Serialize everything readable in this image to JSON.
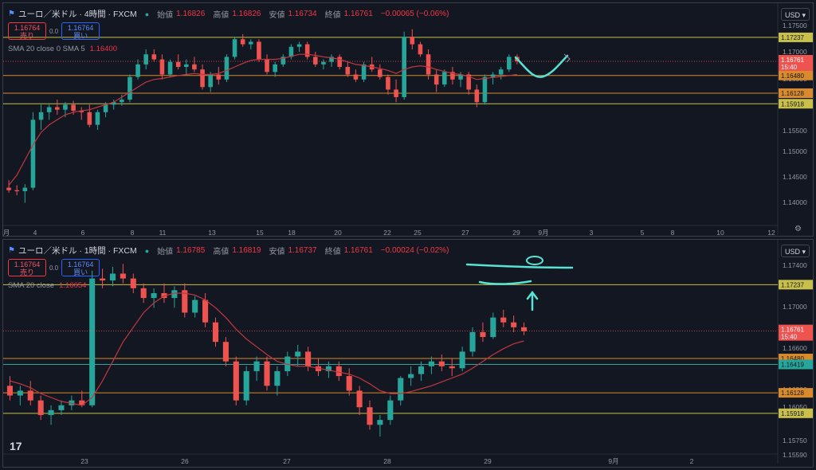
{
  "panels": [
    {
      "symbol": "ユーロ／米ドル · 4時間 · FXCM",
      "ohlc": [
        {
          "k": "始値",
          "v": "1.16826"
        },
        {
          "k": "高値",
          "v": "1.16826"
        },
        {
          "k": "安値",
          "v": "1.16734"
        },
        {
          "k": "終値",
          "v": "1.16761"
        },
        {
          "k": "",
          "v": "−0.00065 (−0.06%)"
        }
      ],
      "sell_price": "1.16764",
      "sell_label": "売り",
      "buy_price": "1.16764",
      "buy_label": "買い",
      "spread": "0.0",
      "sma_label": "SMA 20 close 0 SMA 5",
      "sma_value": "1.16400",
      "currency": "USD"
    },
    {
      "symbol": "ユーロ／米ドル · 1時間 · FXCM",
      "ohlc": [
        {
          "k": "始値",
          "v": "1.16785"
        },
        {
          "k": "高値",
          "v": "1.16819"
        },
        {
          "k": "安値",
          "v": "1.16737"
        },
        {
          "k": "終値",
          "v": "1.16761"
        },
        {
          "k": "",
          "v": "−0.00024 (−0.02%)"
        }
      ],
      "sell_price": "1.16764",
      "sell_label": "売り",
      "buy_price": "1.16764",
      "buy_label": "買い",
      "spread": "0.0",
      "sma_label": "SMA 20 close",
      "sma_value": "1.16654",
      "currency": "USD"
    }
  ],
  "chart_data": [
    {
      "type": "candlestick",
      "title": "ユーロ／米ドル · 4時間 · FXCM",
      "ylim": [
        1.135,
        1.176
      ],
      "y_ticks": [
        "1.17500",
        "1.17000",
        "1.16500",
        "1.16000",
        "1.15500",
        "1.15000",
        "1.14500",
        "1.14000"
      ],
      "x_ticks": [
        "月",
        "4",
        "6",
        "8",
        "11",
        "13",
        "15",
        "18",
        "20",
        "22",
        "25",
        "27",
        "29",
        "9月",
        "3",
        "5",
        "8",
        "10",
        "12"
      ],
      "horizontal_lines": [
        {
          "value": 1.17237,
          "label": "1.17237",
          "color": "#c8c04a"
        },
        {
          "value": 1.1648,
          "label": "1.16480",
          "color": "#d98a2a"
        },
        {
          "value": 1.16128,
          "label": "1.16128",
          "color": "#d98a2a"
        },
        {
          "value": 1.15918,
          "label": "1.15918",
          "color": "#c8c04a"
        }
      ],
      "last_price": {
        "value": "1.16761",
        "countdown": "15:40"
      },
      "sma_price_tag": "1.16480",
      "candles": [
        [
          1.1425,
          1.144,
          1.1415,
          1.142
        ],
        [
          1.142,
          1.143,
          1.141,
          1.1418
        ],
        [
          1.1418,
          1.1432,
          1.1395,
          1.1425
        ],
        [
          1.1425,
          1.1575,
          1.142,
          1.156
        ],
        [
          1.156,
          1.159,
          1.154,
          1.1575
        ],
        [
          1.1575,
          1.159,
          1.156,
          1.1585
        ],
        [
          1.1585,
          1.16,
          1.157,
          1.158
        ],
        [
          1.158,
          1.1595,
          1.1565,
          1.159
        ],
        [
          1.159,
          1.1598,
          1.157,
          1.1578
        ],
        [
          1.1578,
          1.1585,
          1.156,
          1.1575
        ],
        [
          1.1575,
          1.159,
          1.1545,
          1.155
        ],
        [
          1.155,
          1.158,
          1.154,
          1.1575
        ],
        [
          1.1575,
          1.1595,
          1.1565,
          1.159
        ],
        [
          1.159,
          1.16,
          1.158,
          1.1595
        ],
        [
          1.1595,
          1.161,
          1.1588,
          1.16
        ],
        [
          1.16,
          1.165,
          1.1595,
          1.1645
        ],
        [
          1.1645,
          1.168,
          1.164,
          1.167
        ],
        [
          1.167,
          1.17,
          1.166,
          1.169
        ],
        [
          1.169,
          1.17,
          1.1675,
          1.168
        ],
        [
          1.168,
          1.169,
          1.164,
          1.165
        ],
        [
          1.165,
          1.168,
          1.1645,
          1.1675
        ],
        [
          1.1675,
          1.169,
          1.166,
          1.1665
        ],
        [
          1.1665,
          1.168,
          1.165,
          1.167
        ],
        [
          1.167,
          1.1685,
          1.1655,
          1.166
        ],
        [
          1.166,
          1.167,
          1.162,
          1.1625
        ],
        [
          1.1625,
          1.1655,
          1.1615,
          1.165
        ],
        [
          1.165,
          1.1665,
          1.163,
          1.164
        ],
        [
          1.164,
          1.169,
          1.1635,
          1.1685
        ],
        [
          1.1685,
          1.1725,
          1.168,
          1.172
        ],
        [
          1.172,
          1.173,
          1.1705,
          1.171
        ],
        [
          1.171,
          1.172,
          1.17,
          1.1715
        ],
        [
          1.1715,
          1.172,
          1.1675,
          1.168
        ],
        [
          1.168,
          1.169,
          1.165,
          1.1655
        ],
        [
          1.1655,
          1.1675,
          1.1645,
          1.167
        ],
        [
          1.167,
          1.169,
          1.1665,
          1.1685
        ],
        [
          1.1685,
          1.171,
          1.168,
          1.1705
        ],
        [
          1.1705,
          1.1715,
          1.1695,
          1.171
        ],
        [
          1.171,
          1.1715,
          1.168,
          1.1685
        ],
        [
          1.1685,
          1.1695,
          1.1665,
          1.167
        ],
        [
          1.167,
          1.168,
          1.166,
          1.1675
        ],
        [
          1.1675,
          1.169,
          1.1665,
          1.1685
        ],
        [
          1.1685,
          1.169,
          1.166,
          1.1665
        ],
        [
          1.1665,
          1.1675,
          1.1645,
          1.165
        ],
        [
          1.165,
          1.166,
          1.1635,
          1.164
        ],
        [
          1.164,
          1.1675,
          1.1635,
          1.167
        ],
        [
          1.167,
          1.1685,
          1.1655,
          1.166
        ],
        [
          1.166,
          1.167,
          1.164,
          1.1645
        ],
        [
          1.1645,
          1.165,
          1.161,
          1.162
        ],
        [
          1.162,
          1.164,
          1.1595,
          1.1605
        ],
        [
          1.1605,
          1.1735,
          1.16,
          1.1725
        ],
        [
          1.1725,
          1.174,
          1.17,
          1.171
        ],
        [
          1.171,
          1.1715,
          1.1685,
          1.169
        ],
        [
          1.169,
          1.17,
          1.164,
          1.165
        ],
        [
          1.165,
          1.166,
          1.1615,
          1.163
        ],
        [
          1.163,
          1.166,
          1.1625,
          1.1655
        ],
        [
          1.1655,
          1.1665,
          1.163,
          1.164
        ],
        [
          1.164,
          1.1655,
          1.1625,
          1.165
        ],
        [
          1.165,
          1.1655,
          1.161,
          1.162
        ],
        [
          1.162,
          1.163,
          1.1585,
          1.1595
        ],
        [
          1.1595,
          1.165,
          1.159,
          1.1645
        ],
        [
          1.1645,
          1.1655,
          1.163,
          1.165
        ],
        [
          1.165,
          1.1665,
          1.164,
          1.166
        ],
        [
          1.166,
          1.169,
          1.1655,
          1.1685
        ],
        [
          1.1685,
          1.169,
          1.167,
          1.1676
        ]
      ],
      "sma": [
        1.143,
        1.145,
        1.148,
        1.151,
        1.1535,
        1.155,
        1.156,
        1.157,
        1.1575,
        1.1578,
        1.158,
        1.1585,
        1.159,
        1.1595,
        1.1605,
        1.1615,
        1.1625,
        1.1635,
        1.164,
        1.1642,
        1.1645,
        1.1648,
        1.165,
        1.1652,
        1.165,
        1.165,
        1.1652,
        1.1658,
        1.1665,
        1.1672,
        1.1678,
        1.168,
        1.168,
        1.168,
        1.1682,
        1.1686,
        1.169,
        1.169,
        1.1688,
        1.1685,
        1.1683,
        1.168,
        1.1675,
        1.167,
        1.1668,
        1.1665,
        1.1662,
        1.1658,
        1.1652,
        1.166,
        1.1665,
        1.1667,
        1.1665,
        1.166,
        1.1656,
        1.1652,
        1.165,
        1.1646,
        1.164,
        1.1642,
        1.1644,
        1.1646,
        1.1648,
        1.165
      ]
    },
    {
      "type": "candlestick",
      "title": "ユーロ／米ドル · 1時間 · FXCM",
      "ylim": [
        1.155,
        1.1755
      ],
      "y_ticks": [
        "1.17400",
        "1.17000",
        "1.16600",
        "1.16200",
        "1.16050",
        "1.15750",
        "1.15590"
      ],
      "x_ticks": [
        "23",
        "26",
        "27",
        "28",
        "29",
        "9月",
        "2"
      ],
      "horizontal_lines": [
        {
          "value": 1.17237,
          "label": "1.17237",
          "color": "#c8c04a"
        },
        {
          "value": 1.1648,
          "label": "1.16480",
          "color": "#d98a2a"
        },
        {
          "value": 1.16419,
          "label": "1.16419",
          "color": "#26a69a"
        },
        {
          "value": 1.16128,
          "label": "1.16128",
          "color": "#d98a2a"
        },
        {
          "value": 1.15918,
          "label": "1.15918",
          "color": "#c8c04a"
        }
      ],
      "last_price": {
        "value": "1.16761",
        "countdown": "15:40"
      },
      "candles": [
        [
          1.162,
          1.163,
          1.1605,
          1.161
        ],
        [
          1.161,
          1.162,
          1.16,
          1.1615
        ],
        [
          1.1615,
          1.1625,
          1.16,
          1.1605
        ],
        [
          1.1605,
          1.161,
          1.1585,
          1.159
        ],
        [
          1.159,
          1.16,
          1.158,
          1.1595
        ],
        [
          1.1595,
          1.1605,
          1.159,
          1.16
        ],
        [
          1.16,
          1.161,
          1.1595,
          1.1605
        ],
        [
          1.1605,
          1.1615,
          1.1598,
          1.16
        ],
        [
          1.16,
          1.1738,
          1.1598,
          1.173
        ],
        [
          1.173,
          1.174,
          1.172,
          1.1728
        ],
        [
          1.1728,
          1.1742,
          1.1722,
          1.1735
        ],
        [
          1.1735,
          1.1745,
          1.1725,
          1.173
        ],
        [
          1.173,
          1.1735,
          1.1715,
          1.172
        ],
        [
          1.172,
          1.1725,
          1.1705,
          1.171
        ],
        [
          1.171,
          1.172,
          1.17,
          1.1715
        ],
        [
          1.1715,
          1.1725,
          1.1705,
          1.171
        ],
        [
          1.171,
          1.1722,
          1.17,
          1.1718
        ],
        [
          1.1718,
          1.1725,
          1.169,
          1.1695
        ],
        [
          1.1695,
          1.1712,
          1.169,
          1.1708
        ],
        [
          1.1708,
          1.1715,
          1.168,
          1.1685
        ],
        [
          1.1685,
          1.169,
          1.166,
          1.1665
        ],
        [
          1.1665,
          1.167,
          1.164,
          1.1645
        ],
        [
          1.1645,
          1.165,
          1.16,
          1.1605
        ],
        [
          1.1605,
          1.164,
          1.16,
          1.1635
        ],
        [
          1.1635,
          1.165,
          1.1625,
          1.1645
        ],
        [
          1.1645,
          1.165,
          1.1615,
          1.162
        ],
        [
          1.162,
          1.164,
          1.161,
          1.1635
        ],
        [
          1.1635,
          1.1655,
          1.163,
          1.165
        ],
        [
          1.165,
          1.1662,
          1.164,
          1.1655
        ],
        [
          1.1655,
          1.166,
          1.1635,
          1.164
        ],
        [
          1.164,
          1.1648,
          1.163,
          1.1635
        ],
        [
          1.1635,
          1.1645,
          1.1628,
          1.164
        ],
        [
          1.164,
          1.1645,
          1.1625,
          1.163
        ],
        [
          1.163,
          1.1638,
          1.161,
          1.1615
        ],
        [
          1.1615,
          1.162,
          1.159,
          1.1598
        ],
        [
          1.1598,
          1.1605,
          1.1575,
          1.158
        ],
        [
          1.158,
          1.159,
          1.1568,
          1.1585
        ],
        [
          1.1585,
          1.161,
          1.158,
          1.1605
        ],
        [
          1.1605,
          1.163,
          1.16,
          1.1628
        ],
        [
          1.1628,
          1.164,
          1.162,
          1.1632
        ],
        [
          1.1632,
          1.1645,
          1.1625,
          1.164
        ],
        [
          1.164,
          1.165,
          1.1632,
          1.1645
        ],
        [
          1.1645,
          1.1652,
          1.1635,
          1.164
        ],
        [
          1.164,
          1.1648,
          1.163,
          1.1638
        ],
        [
          1.1638,
          1.166,
          1.1635,
          1.1655
        ],
        [
          1.1655,
          1.168,
          1.165,
          1.1675
        ],
        [
          1.1675,
          1.1685,
          1.1665,
          1.167
        ],
        [
          1.167,
          1.1695,
          1.1668,
          1.169
        ],
        [
          1.169,
          1.1698,
          1.168,
          1.1685
        ],
        [
          1.1685,
          1.1692,
          1.1675,
          1.168
        ],
        [
          1.168,
          1.1685,
          1.1672,
          1.1676
        ]
      ],
      "sma": [
        1.1625,
        1.1622,
        1.1618,
        1.1612,
        1.1608,
        1.1604,
        1.1602,
        1.16,
        1.1608,
        1.1625,
        1.1645,
        1.1665,
        1.168,
        1.1695,
        1.1705,
        1.1712,
        1.1715,
        1.1715,
        1.1713,
        1.1708,
        1.17,
        1.169,
        1.1678,
        1.1668,
        1.166,
        1.1652,
        1.1645,
        1.1642,
        1.164,
        1.164,
        1.1638,
        1.1636,
        1.1634,
        1.1632,
        1.1628,
        1.1622,
        1.1615,
        1.1612,
        1.1612,
        1.1614,
        1.1617,
        1.162,
        1.1624,
        1.1628,
        1.1632,
        1.1638,
        1.1645,
        1.1652,
        1.1658,
        1.1663,
        1.1666
      ]
    }
  ],
  "colors": {
    "up": "#26a69a",
    "down": "#ef5350",
    "sma": "#c2373f",
    "background": "#131722",
    "annotation": "#57e3d5"
  }
}
